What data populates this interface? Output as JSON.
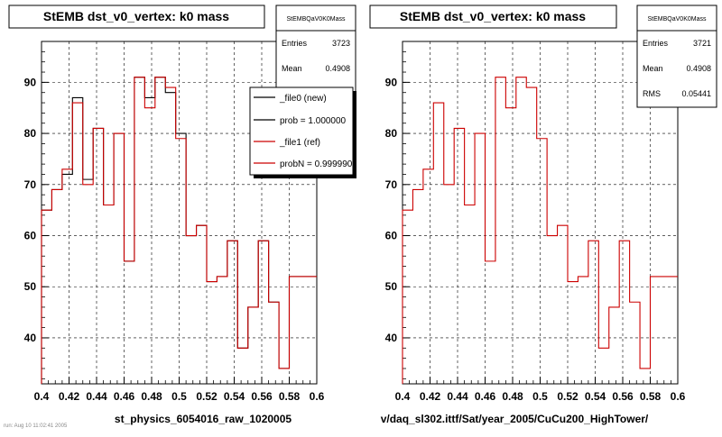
{
  "bottom_note": "run: Aug 10 11:02:41 2005",
  "chart_data": [
    {
      "type": "step-histogram",
      "title": "StEMB dst_v0_vertex: k0 mass",
      "xlabel": "st_physics_6054016_raw_1020005",
      "ylabel": "",
      "xlim": [
        0.4,
        0.6
      ],
      "ylim": [
        31,
        98
      ],
      "grid": true,
      "x_ticks": [
        "0.4",
        "0.42",
        "0.44",
        "0.46",
        "0.48",
        "0.5",
        "0.52",
        "0.54",
        "0.56",
        "0.58",
        "0.6"
      ],
      "y_ticks": [
        "40",
        "50",
        "60",
        "70",
        "80",
        "90"
      ],
      "bin_edges": [
        0.4,
        0.4075,
        0.415,
        0.4225,
        0.43,
        0.4375,
        0.445,
        0.4525,
        0.46,
        0.4675,
        0.475,
        0.4825,
        0.49,
        0.4975,
        0.505,
        0.5125,
        0.52,
        0.5275,
        0.535,
        0.5425,
        0.55,
        0.5575,
        0.565,
        0.5725,
        0.58,
        0.5875,
        0.595,
        0.6025
      ],
      "series": [
        {
          "name": "_file0 (new)",
          "color": "#000000",
          "values": [
            65,
            69,
            72,
            87,
            71,
            81,
            66,
            80,
            55,
            91,
            87,
            91,
            88,
            80,
            60,
            62,
            51,
            52,
            59,
            38,
            46,
            59,
            47,
            34,
            52,
            52,
            52
          ]
        },
        {
          "name": "_file1 (ref)",
          "color": "#cc0000",
          "values": [
            65,
            69,
            73,
            86,
            70,
            81,
            66,
            80,
            55,
            91,
            85,
            91,
            89,
            79,
            60,
            62,
            51,
            52,
            59,
            38,
            46,
            59,
            47,
            34,
            52,
            52,
            52
          ]
        }
      ],
      "stats": {
        "name": "StEMBQaV0K0Mass",
        "entries_label": "Entries",
        "entries": "3723",
        "mean_label": "Mean",
        "mean": "0.4908"
      },
      "legend": {
        "placement": "top-right",
        "entries": [
          {
            "label": "_file0 (new)",
            "color": "#000000"
          },
          {
            "label": "prob = 1.000000",
            "color": "#000000"
          },
          {
            "label": "_file1 (ref)",
            "color": "#cc0000"
          },
          {
            "label": "probN = 0.999990",
            "color": "#cc0000"
          }
        ]
      }
    },
    {
      "type": "step-histogram",
      "title": "StEMB dst_v0_vertex: k0 mass",
      "xlabel": "v/daq_sl302.ittf/Sat/year_2005/CuCu200_HighTower/",
      "ylabel": "",
      "xlim": [
        0.4,
        0.6
      ],
      "ylim": [
        31,
        98
      ],
      "grid": true,
      "x_ticks": [
        "0.4",
        "0.42",
        "0.44",
        "0.46",
        "0.48",
        "0.5",
        "0.52",
        "0.54",
        "0.56",
        "0.58",
        "0.6"
      ],
      "y_ticks": [
        "40",
        "50",
        "60",
        "70",
        "80",
        "90"
      ],
      "bin_edges": [
        0.4,
        0.4075,
        0.415,
        0.4225,
        0.43,
        0.4375,
        0.445,
        0.4525,
        0.46,
        0.4675,
        0.475,
        0.4825,
        0.49,
        0.4975,
        0.505,
        0.5125,
        0.52,
        0.5275,
        0.535,
        0.5425,
        0.55,
        0.5575,
        0.565,
        0.5725,
        0.58,
        0.5875,
        0.595,
        0.6025
      ],
      "series": [
        {
          "name": "_file1 (ref)",
          "color": "#cc0000",
          "values": [
            65,
            69,
            73,
            86,
            70,
            81,
            66,
            80,
            55,
            91,
            85,
            91,
            89,
            79,
            60,
            62,
            51,
            52,
            59,
            38,
            46,
            59,
            47,
            34,
            52,
            52,
            52
          ]
        }
      ],
      "stats": {
        "name": "StEMBQaV0K0Mass",
        "entries_label": "Entries",
        "entries": "3721",
        "mean_label": "Mean",
        "mean": "0.4908",
        "rms_label": "RMS",
        "rms": "0.05441"
      }
    }
  ]
}
